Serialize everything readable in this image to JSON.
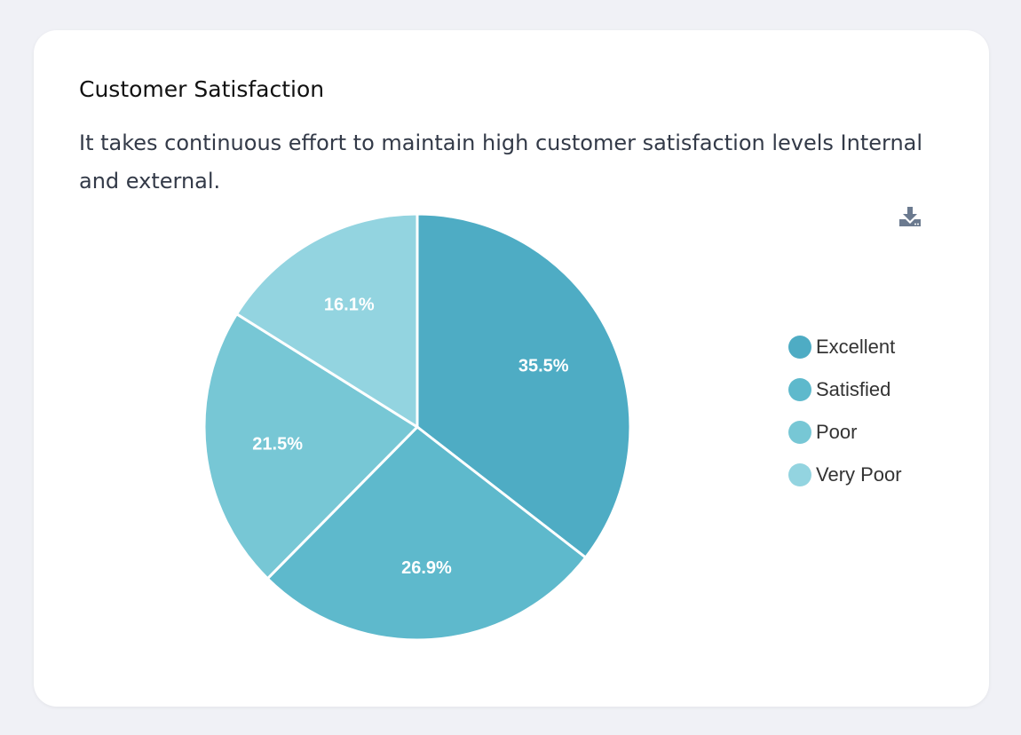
{
  "card": {
    "title": "Customer Satisfaction",
    "subtitle": "It takes continuous effort to maintain high customer satisfaction levels Internal and external."
  },
  "toolbar": {
    "download_icon": "download-icon"
  },
  "chart_data": {
    "type": "pie",
    "title": "Customer Satisfaction",
    "categories": [
      "Excellent",
      "Satisfied",
      "Poor",
      "Very Poor"
    ],
    "values": [
      35.5,
      26.9,
      21.5,
      16.1
    ],
    "labels": [
      "35.5%",
      "26.9%",
      "21.5%",
      "16.1%"
    ],
    "colors": [
      "#4eacc4",
      "#5eb9cc",
      "#77c7d5",
      "#93d4e0"
    ],
    "legend_position": "right"
  }
}
